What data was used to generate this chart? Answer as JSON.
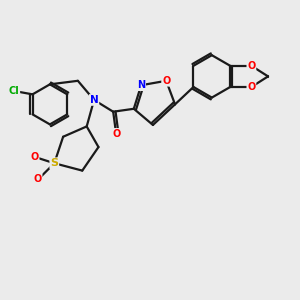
{
  "bg_color": "#ebebeb",
  "bond_color": "#1a1a1a",
  "atom_colors": {
    "O": "#ff0000",
    "N": "#0000ff",
    "S": "#ccaa00",
    "Cl": "#00aa00",
    "C": "#1a1a1a"
  },
  "figsize": [
    3.0,
    3.0
  ],
  "dpi": 100
}
